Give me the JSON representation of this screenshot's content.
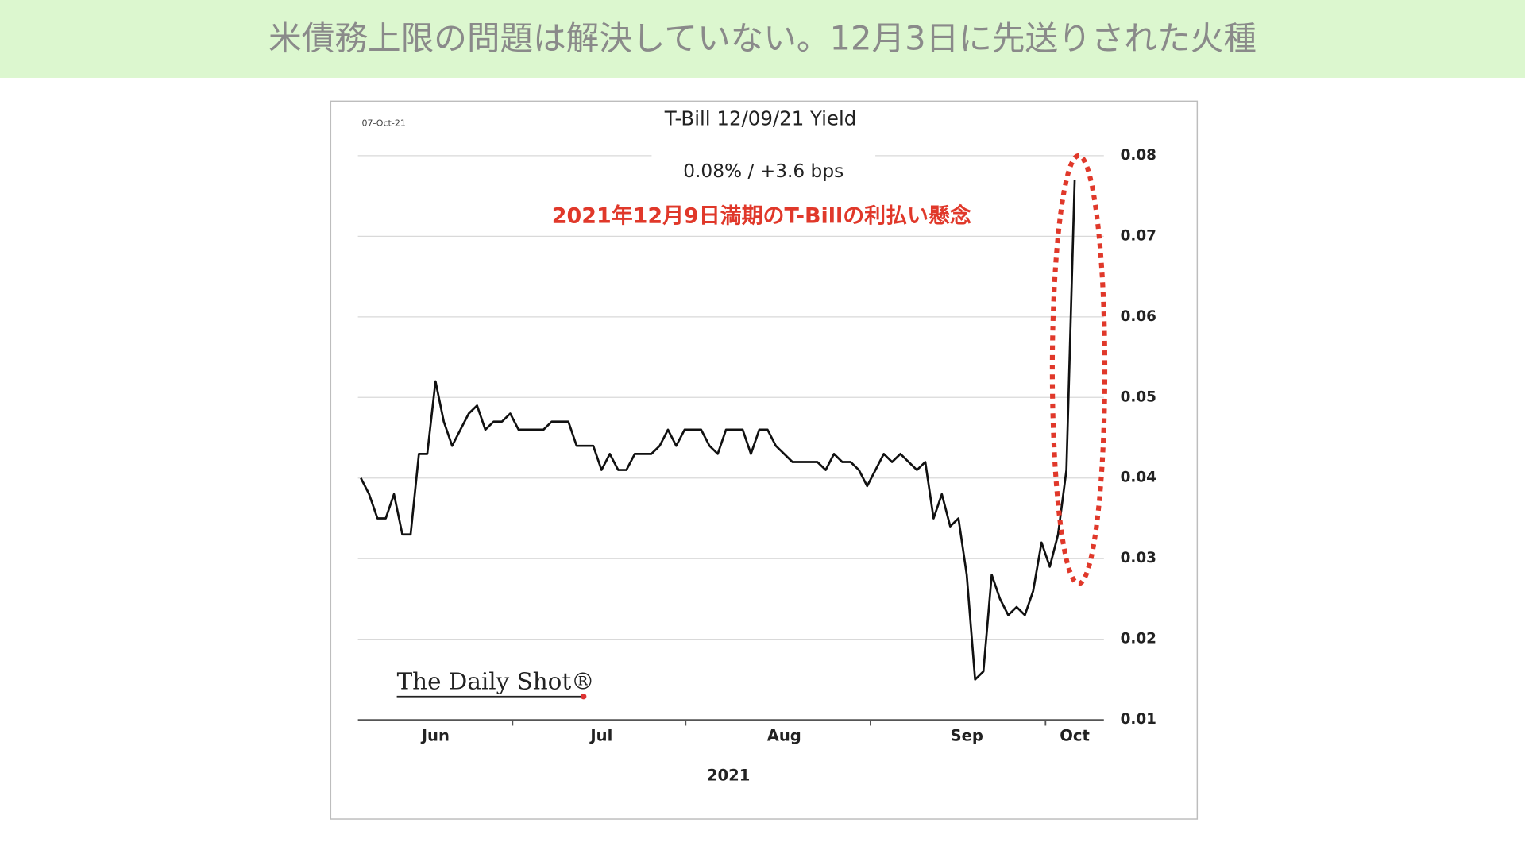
{
  "header": {
    "title": "米債務上限の問題は解決していない。12月3日に先送りされた火種"
  },
  "chart_data": {
    "type": "line",
    "title": "T-Bill 12/09/21 Yield",
    "date": "07-Oct-21",
    "subtitle": "0.08%  /  +3.6 bps",
    "annotation": "2021年12月9日満期のT-Billの利払い懸念",
    "source": "The Daily Shot®",
    "xlabel": "2021",
    "color": "#111111",
    "values": [
      0.04,
      0.038,
      0.035,
      0.035,
      0.038,
      0.033,
      0.033,
      0.043,
      0.043,
      0.052,
      0.047,
      0.044,
      0.046,
      0.048,
      0.049,
      0.046,
      0.047,
      0.047,
      0.048,
      0.046,
      0.046,
      0.046,
      0.046,
      0.047,
      0.047,
      0.047,
      0.044,
      0.044,
      0.044,
      0.041,
      0.043,
      0.041,
      0.041,
      0.043,
      0.043,
      0.043,
      0.044,
      0.046,
      0.044,
      0.046,
      0.046,
      0.046,
      0.044,
      0.043,
      0.046,
      0.046,
      0.046,
      0.043,
      0.046,
      0.046,
      0.044,
      0.043,
      0.042,
      0.042,
      0.042,
      0.042,
      0.041,
      0.043,
      0.042,
      0.042,
      0.041,
      0.039,
      0.041,
      0.043,
      0.042,
      0.043,
      0.042,
      0.041,
      0.042,
      0.035,
      0.038,
      0.034,
      0.035,
      0.028,
      0.015,
      0.016,
      0.028,
      0.025,
      0.023,
      0.024,
      0.023,
      0.026,
      0.032,
      0.029,
      0.033,
      0.041,
      0.077
    ],
    "xticks": [
      {
        "value": 9,
        "label": "Jun"
      },
      {
        "value": 29,
        "label": "Jul"
      },
      {
        "value": 51,
        "label": "Aug"
      },
      {
        "value": 73,
        "label": "Sep"
      },
      {
        "value": 86,
        "label": "Oct"
      }
    ],
    "ylim": [
      0.01,
      0.08
    ],
    "yticks": [
      0.01,
      0.02,
      0.03,
      0.04,
      0.05,
      0.06,
      0.07,
      0.08
    ],
    "grid": true
  }
}
